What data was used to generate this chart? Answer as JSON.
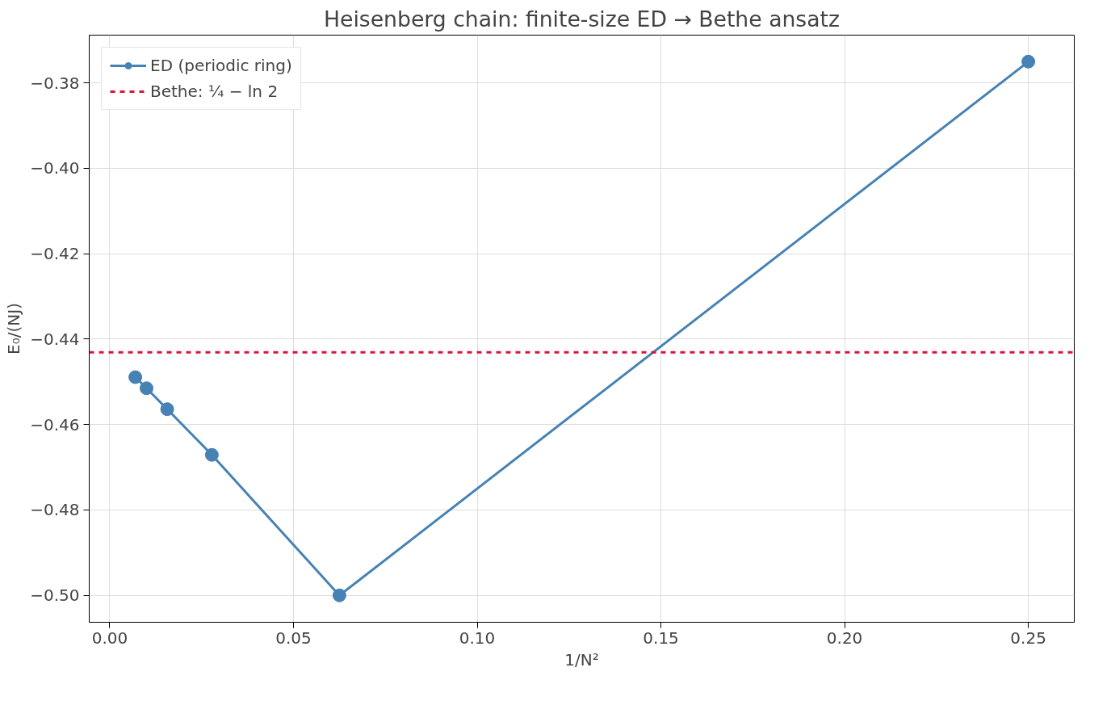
{
  "chart_data": {
    "type": "line",
    "title": "Heisenberg chain: finite-size ED → Bethe ansatz",
    "xlabel": "1/N²",
    "ylabel": "E₀/(NJ)",
    "x": [
      0.006944,
      0.01,
      0.015625,
      0.027778,
      0.0625,
      0.25
    ],
    "series": [
      {
        "name": "ED (periodic ring)",
        "color": "#4682b4",
        "values": [
          -0.4489,
          -0.4515,
          -0.4564,
          -0.4671,
          -0.5,
          -0.375
        ]
      }
    ],
    "xlim": [
      -0.0056,
      0.2625
    ],
    "ylim": [
      -0.5063,
      -0.3688
    ],
    "xticks": [
      {
        "value": 0,
        "label": "0.00"
      },
      {
        "value": 0.05,
        "label": "0.05"
      },
      {
        "value": 0.1,
        "label": "0.10"
      },
      {
        "value": 0.15,
        "label": "0.15"
      },
      {
        "value": 0.2,
        "label": "0.20"
      },
      {
        "value": 0.25,
        "label": "0.25"
      }
    ],
    "yticks": [
      {
        "value": -0.5,
        "label": "−0.50"
      },
      {
        "value": -0.48,
        "label": "−0.48"
      },
      {
        "value": -0.46,
        "label": "−0.46"
      },
      {
        "value": -0.44,
        "label": "−0.44"
      },
      {
        "value": -0.42,
        "label": "−0.42"
      },
      {
        "value": -0.4,
        "label": "−0.40"
      },
      {
        "value": -0.38,
        "label": "−0.38"
      }
    ],
    "ref_lines": [
      {
        "axis": "y",
        "value": -0.4431,
        "label": "Bethe: ¼ − ln 2",
        "color": "#dc143c",
        "line_style": "dashed"
      }
    ],
    "grid": true,
    "legend": "top left",
    "marker": "circle",
    "line_style": "solid"
  }
}
